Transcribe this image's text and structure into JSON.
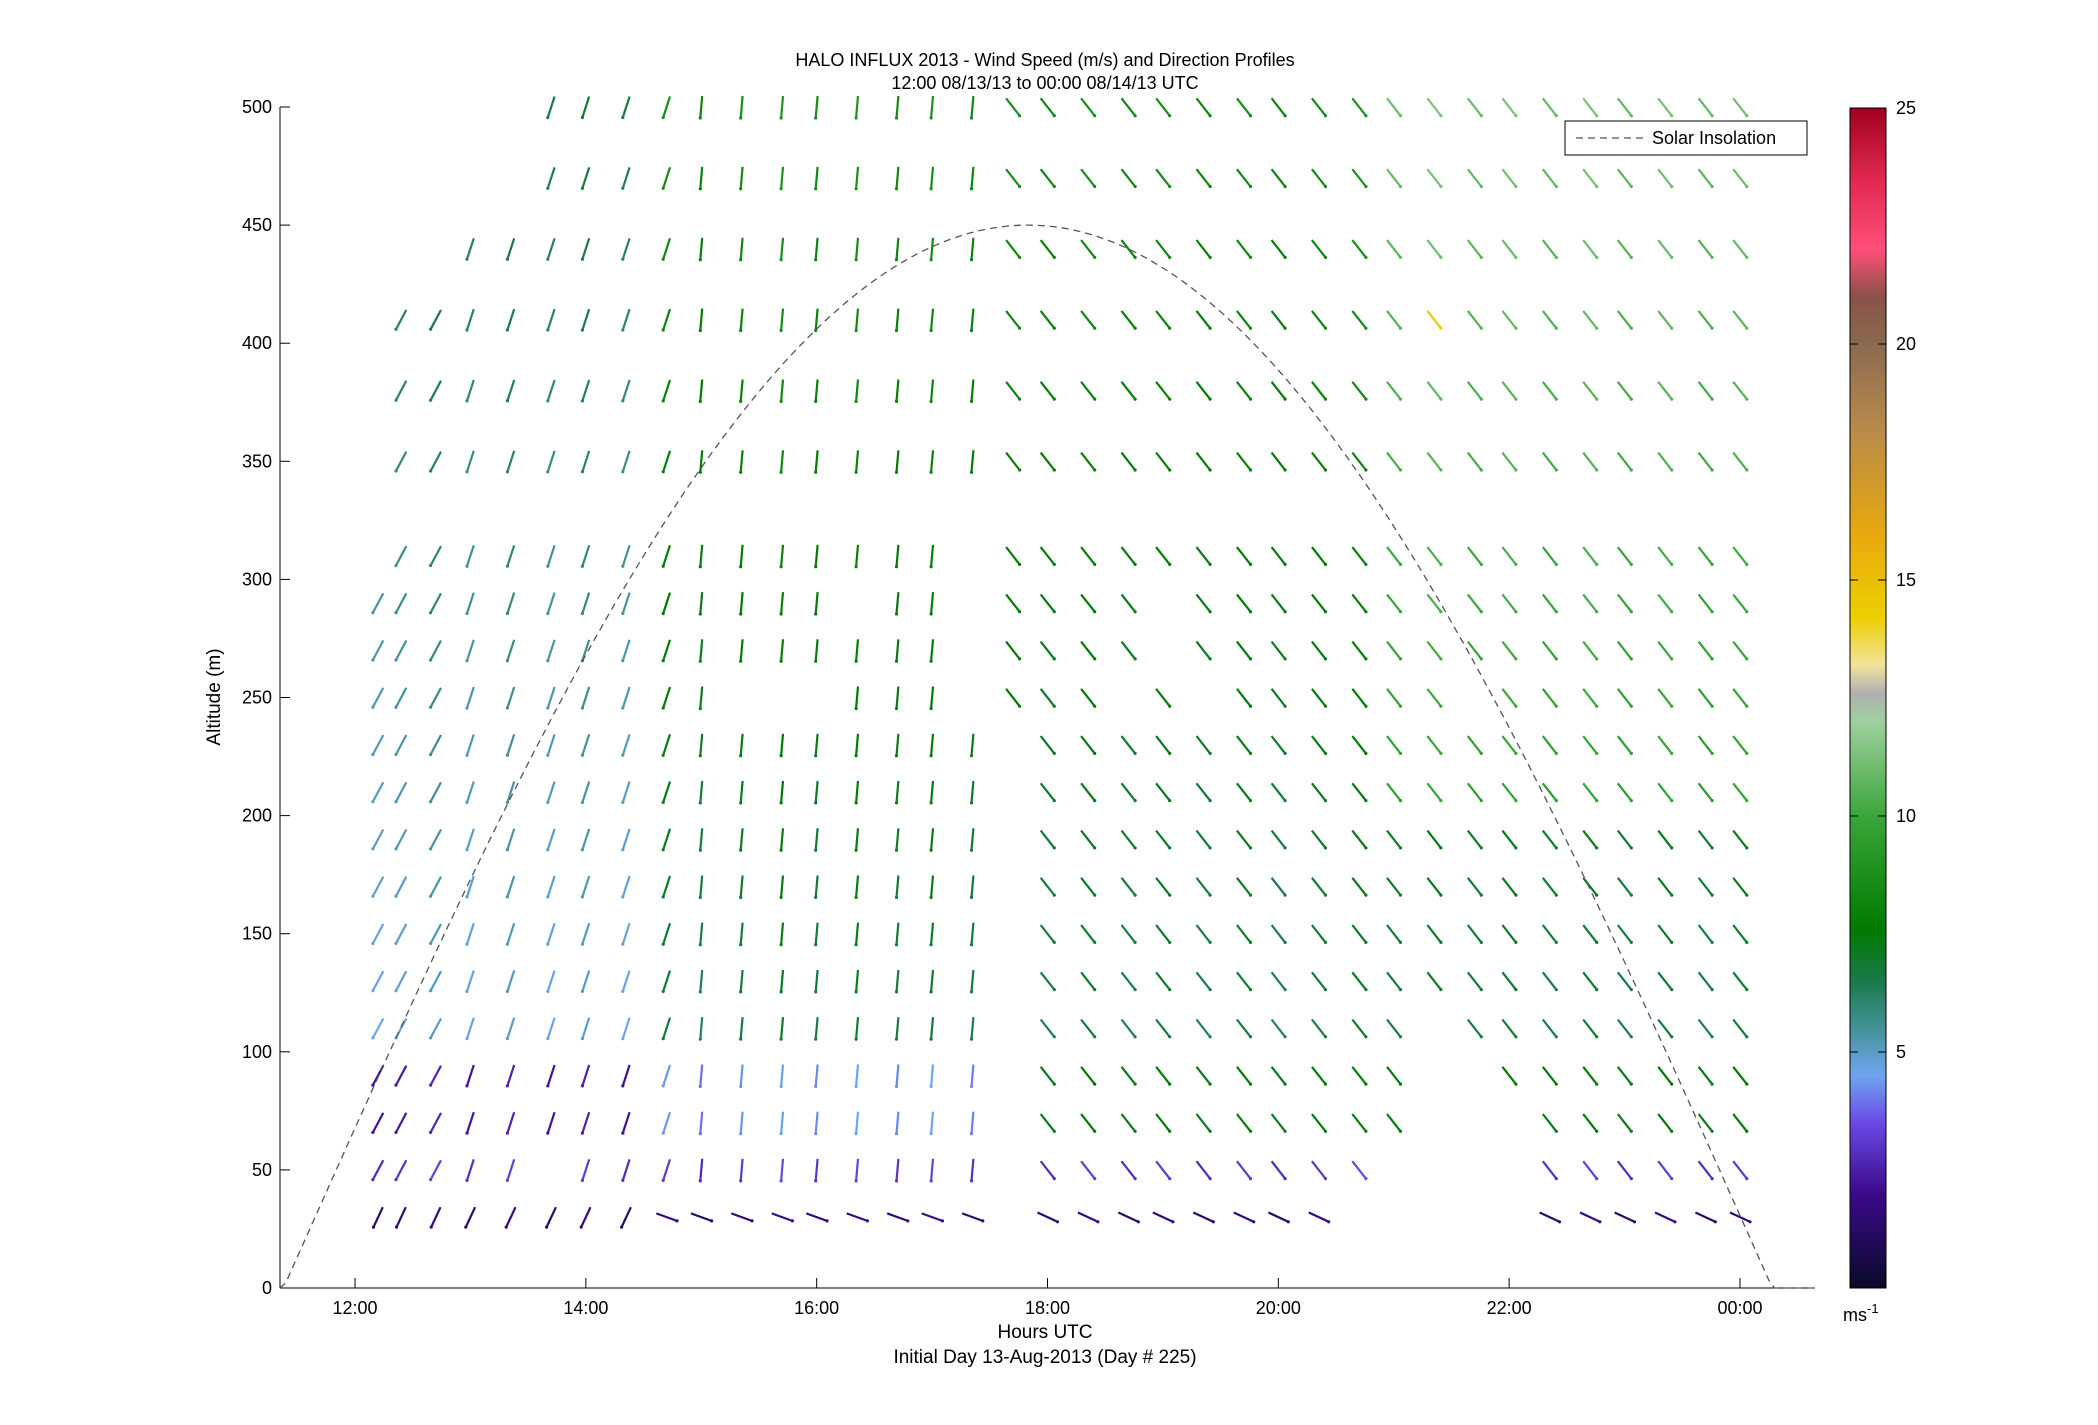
{
  "chart_data": {
    "type": "quiver",
    "title": "HALO INFLUX 2013 - Wind Speed (m/s) and Direction Profiles",
    "subtitle": "12:00 08/13/13 to 00:00 08/14/13  UTC",
    "xlabel": "Hours UTC",
    "xlabel2": "Initial Day 13-Aug-2013 (Day # 225)",
    "ylabel": "Altitude (m)",
    "xlim": [
      11.35,
      24.65
    ],
    "ylim": [
      0,
      500
    ],
    "x_ticks": [
      {
        "value": 12,
        "label": "12:00"
      },
      {
        "value": 14,
        "label": "14:00"
      },
      {
        "value": 16,
        "label": "16:00"
      },
      {
        "value": 18,
        "label": "18:00"
      },
      {
        "value": 20,
        "label": "20:00"
      },
      {
        "value": 22,
        "label": "22:00"
      },
      {
        "value": 24,
        "label": "00:00"
      }
    ],
    "y_ticks": [
      0,
      50,
      100,
      150,
      200,
      250,
      300,
      350,
      400,
      450,
      500
    ],
    "colorbar": {
      "min": 0,
      "max": 25,
      "ticks": [
        5,
        10,
        15,
        20,
        25
      ],
      "unit": "ms",
      "unit_exp": "-1",
      "stops": [
        {
          "v": 0,
          "c": "#0a0a28"
        },
        {
          "v": 2,
          "c": "#3a0a8a"
        },
        {
          "v": 3.5,
          "c": "#6a4ae6"
        },
        {
          "v": 4.5,
          "c": "#6fa5f0"
        },
        {
          "v": 5.6,
          "c": "#3f9090"
        },
        {
          "v": 6.5,
          "c": "#1a7a4a"
        },
        {
          "v": 7.6,
          "c": "#007a00"
        },
        {
          "v": 10,
          "c": "#3aa63a"
        },
        {
          "v": 12,
          "c": "#9fd09f"
        },
        {
          "v": 12.6,
          "c": "#b0b0b0"
        },
        {
          "v": 13.2,
          "c": "#f3e39b"
        },
        {
          "v": 14.2,
          "c": "#ecd000"
        },
        {
          "v": 16,
          "c": "#e8a810"
        },
        {
          "v": 18.2,
          "c": "#b88a4a"
        },
        {
          "v": 20,
          "c": "#8a6a50"
        },
        {
          "v": 21,
          "c": "#8a5248"
        },
        {
          "v": 22,
          "c": "#ff4f7a"
        },
        {
          "v": 23.5,
          "c": "#e02850"
        },
        {
          "v": 25,
          "c": "#a00020"
        }
      ]
    },
    "legend": {
      "label": "Solar Insolation",
      "position": "top-right",
      "style": "dashed"
    },
    "solar_curve": {
      "peak_hour": 17.83,
      "peak_altitude": 450,
      "half_width_hours": 6.45
    },
    "altitudes": [
      30,
      50,
      70,
      90,
      110,
      130,
      150,
      170,
      190,
      210,
      230,
      250,
      270,
      290,
      310,
      350,
      380,
      410,
      440,
      470,
      500
    ],
    "times": [
      12.2,
      12.4,
      12.7,
      13.0,
      13.35,
      13.7,
      14.0,
      14.35,
      14.7,
      15.0,
      15.35,
      15.7,
      16.0,
      16.35,
      16.7,
      17.0,
      17.35,
      17.7,
      18.0,
      18.35,
      18.7,
      19.0,
      19.35,
      19.7,
      20.0,
      20.35,
      20.7,
      21.0,
      21.35,
      21.7,
      22.0,
      22.35,
      22.7,
      23.0,
      23.35,
      23.7,
      24.0
    ],
    "grid_code": {
      "u": {
        "30": "A A A A A A A A A A A A A A A A A - A A A A A A A A - - - - - A A A A A A",
        "50": "A A A A A - A A A A A A A A A A A - A A A A A A A A A - - - - A A A A A A",
        "70": "A A A A A A A A A A A A A A A A A - A A A A A A A A A A - - - A A A A A A",
        "90": "A A A A A A A A A A A A A A A A A - A A A A A A A A A A - - A A A A A A A",
        "110": "A A A A A A A A A A A A A A A A A - A A A A A A A A A A - A A A A A A A A",
        "130": "A A A A A A A A A A A A A A A A A - A A A A A A A A A A A A A A A A A A A",
        "150": "A A A A A A A A A A A A A A A A A - A A A A A A A A A A A A A A A A A A A",
        "170": "A A A A A A A A A A A A A A A A A - A A A A A A A A A A A A A A A A A A A",
        "190": "A A A A A A A A A A A A A A A A A - A A A A A A A A A A A A A A A A A A A",
        "210": "A A A A A A A A A A A A A A A A A - A A A A A A A A A A A A A A A A A A A",
        "230": "A A A A A A A A A A A A A A A A A - A A A A A A A A A A A A A A A A A A A",
        "250": "A A A A A A A A A A - - - A A A - A A A - A - A A A A A A - A A A A A A A",
        "270": "A A A A A A A A A A A A A A A A - A A A A - A A A A A A A A A A A A A A A",
        "290": "A A A A A A A A A A A A A - A A - A A A A - A A A A A A A A A A A A A A A",
        "310": "- A A A A A A A A A A A A A A A - A A A A A A A A A A A A A A A A A A A A",
        "350": "- A A A A A A A A A A A A A A A A A A A A A A A A A A A A A A A A A A A A",
        "380": "- A A A A A A A A A A A A A A A A A A A A A A A A A A A A A A A A A A A A",
        "410": "- A A A A A A A A A A A A A A A A A A A A A A A A A A A A A A A A A A A A",
        "440": "- - - A A A A A A A A A A A A A A A A A A A A A A A A A A A A A A A A A A",
        "470": "- - - - - A A A A A A A A A A A A A A A A A A A A A A A A A A A A A A A A",
        "500": "- - - - - A A A A A A A A A A A A A A A A A A A A A A A A A A A A A A A A"
      }
    },
    "direction_summary": "Winds from the north-northeast below 17:00 turning to north-northwest after 18:00; speeds 2-4 m/s near 30-50 m, 6-9 m/s aloft, up to ~14 m/s at 410 m near 21:00."
  }
}
